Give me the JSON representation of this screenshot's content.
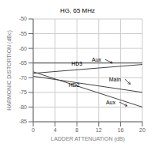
{
  "chart_data": {
    "type": "line",
    "title": "HG, 65 MHz",
    "xlabel": "LADDER ATTENUATION (dB)",
    "ylabel": "HARMONIC DISTORTION (dBc)",
    "x": [
      0,
      20
    ],
    "series": [
      {
        "color": "#444444",
        "values": [
          -68.0,
          -80.0
        ]
      },
      {
        "color": "#444444",
        "values": [
          -69.5,
          -75.0
        ]
      },
      {
        "color": "#444444",
        "values": [
          -68.5,
          -65.5
        ]
      },
      {
        "color": "#444444",
        "values": [
          -65.0,
          -65.0
        ]
      }
    ],
    "xlim": [
      0,
      20
    ],
    "ylim": [
      -85,
      -50
    ],
    "xticks": [
      0,
      4,
      8,
      12,
      16,
      20
    ],
    "yticks": [
      -85,
      -80,
      -75,
      -70,
      -65,
      -60,
      -55,
      -50
    ],
    "grid": true,
    "annotations": [
      {
        "text": "HD2",
        "x": 7.5,
        "y": -72.5
      },
      {
        "text": "HD3",
        "x": 8.0,
        "y": -65.2
      },
      {
        "text": "Aux",
        "x": 15.8,
        "y": -78.3,
        "arrow": [
          17.2,
          -79.6
        ]
      },
      {
        "text": "Main",
        "x": 16.8,
        "y": -70.5,
        "arrow": [
          17.8,
          -72.2
        ]
      },
      {
        "text": "Aux",
        "x": 13.2,
        "y": -63.8,
        "arrow": [
          14.5,
          -65.0
        ]
      }
    ]
  }
}
